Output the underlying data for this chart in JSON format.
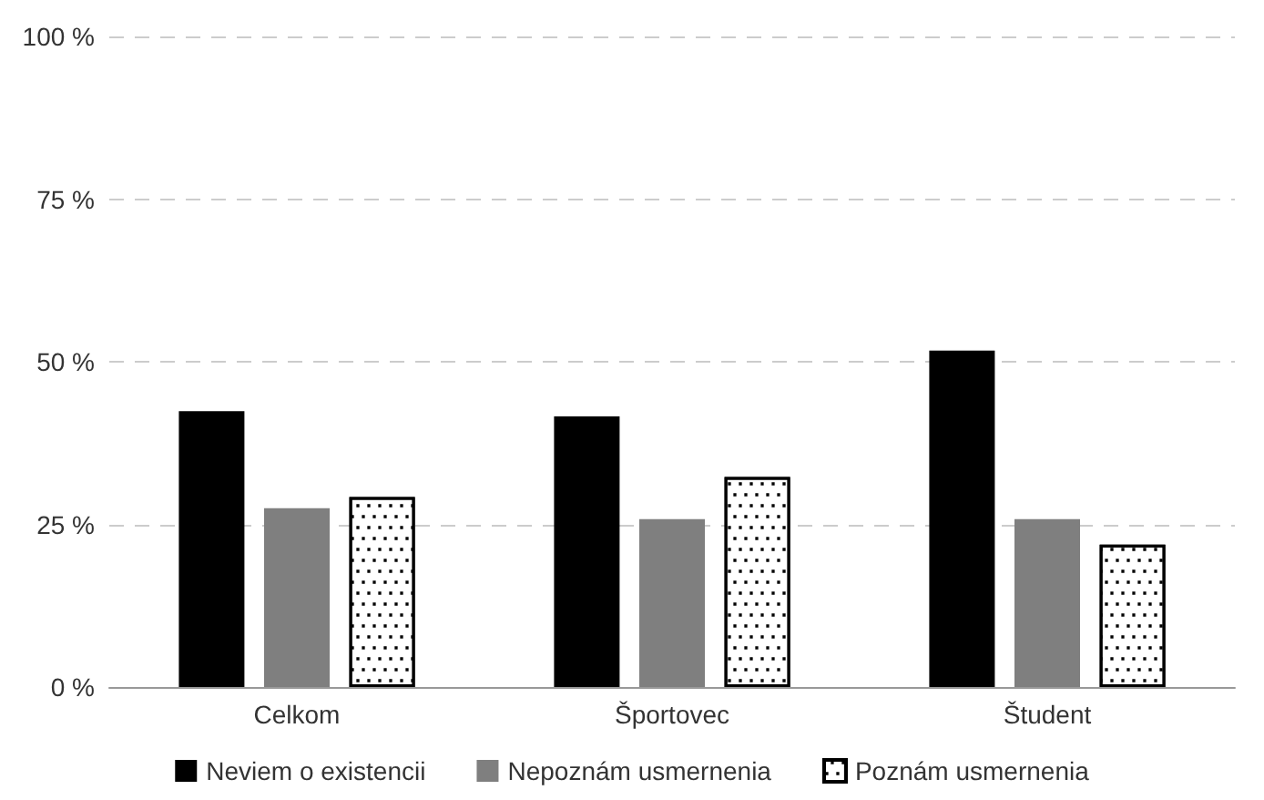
{
  "chart_data": {
    "type": "bar",
    "categories": [
      "Celkom",
      "Športovec",
      "Študent"
    ],
    "series": [
      {
        "name": "Neviem o existencii",
        "color": "#000000",
        "values": [
          42.4,
          41.6,
          51.7
        ]
      },
      {
        "name": "Nepoznám usmernenia",
        "color": "#7f7f7f",
        "values": [
          27.5,
          25.8,
          25.8
        ]
      },
      {
        "name": "Poznám usmernenia",
        "color": "#ffffff",
        "values": [
          29.2,
          32.3,
          21.9
        ]
      }
    ],
    "ylim": [
      0,
      100
    ],
    "yticks": [
      {
        "value": 0,
        "label": "0 %"
      },
      {
        "value": 25,
        "label": "25 %"
      },
      {
        "value": 50,
        "label": "50 %"
      },
      {
        "value": 75,
        "label": "75 %"
      },
      {
        "value": 100,
        "label": "100 %"
      }
    ],
    "grid": "y",
    "legend": "bottom"
  }
}
